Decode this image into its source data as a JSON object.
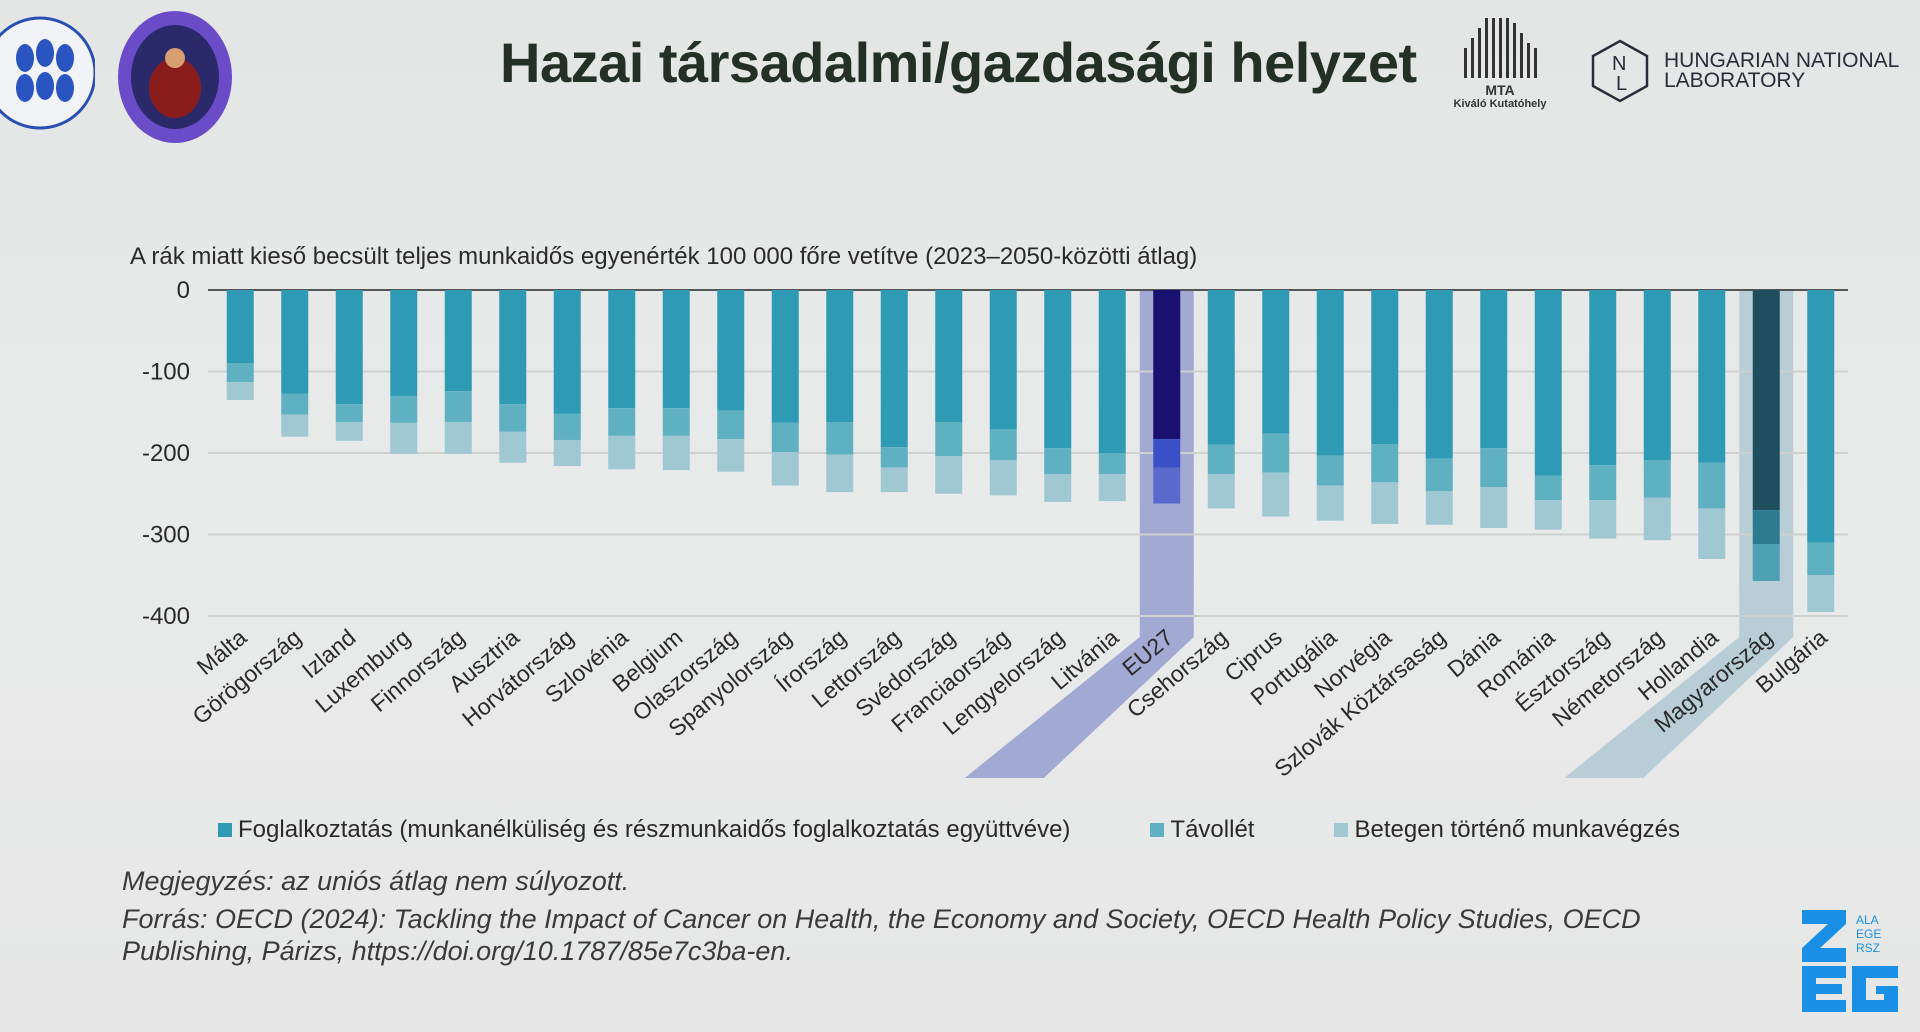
{
  "header": {
    "title": "Hazai társadalmi/gazdasági helyzet",
    "mta_logo": {
      "line1": "MTA",
      "line2": "Kiváló Kutatóhely"
    },
    "hnl_logo": {
      "mark": "NL",
      "line1": "HUNGARIAN NATIONAL",
      "line2": "LABORATORY"
    },
    "zeg_logo": {
      "letters": "ZEG",
      "small": [
        "ALA",
        "EGE",
        "RSZ"
      ]
    }
  },
  "chart_data": {
    "type": "bar",
    "stacked": true,
    "title": "A rák miatt kieső becsült teljes munkaidős egyenérték 100 000 főre vetítve (2023–2050-közötti átlag)",
    "xlabel": "",
    "ylabel": "",
    "ylim": [
      -400,
      0
    ],
    "yticks": [
      0,
      -100,
      -200,
      -300,
      -400
    ],
    "grid": true,
    "legend_position": "bottom",
    "categories": [
      "Málta",
      "Görögország",
      "Izland",
      "Luxemburg",
      "Finnország",
      "Ausztria",
      "Horvátország",
      "Szlovénia",
      "Belgium",
      "Olaszország",
      "Spanyolország",
      "Írország",
      "Lettország",
      "Svédország",
      "Franciaország",
      "Lengyelország",
      "Litvánia",
      "EU27",
      "Csehország",
      "Ciprus",
      "Portugália",
      "Norvégia",
      "Szlovák Köztársaság",
      "Dánia",
      "Románia",
      "Észtország",
      "Németország",
      "Hollandia",
      "Magyarország",
      "Bulgária"
    ],
    "highlighted": [
      "EU27",
      "Magyarország"
    ],
    "series": [
      {
        "name": "Foglalkoztatás (munkanélküliség és részmunkaidős foglalkoztatás együttvéve)",
        "color": "#2e9ab3",
        "values": [
          -90,
          -127,
          -140,
          -130,
          -124,
          -140,
          -152,
          -145,
          -145,
          -148,
          -163,
          -162,
          -193,
          -162,
          -171,
          -194,
          -200,
          -183,
          -190,
          -176,
          -203,
          -189,
          -207,
          -194,
          -228,
          -215,
          -209,
          -212,
          -270,
          -310
        ]
      },
      {
        "name": "Távollét",
        "color": "#5fb0c1",
        "values": [
          -23,
          -26,
          -22,
          -33,
          -38,
          -34,
          -32,
          -34,
          -34,
          -35,
          -36,
          -40,
          -25,
          -42,
          -38,
          -32,
          -26,
          -35,
          -36,
          -48,
          -37,
          -47,
          -40,
          -48,
          -30,
          -43,
          -46,
          -56,
          -42,
          -40
        ]
      },
      {
        "name": "Betegen történő munkavégzés",
        "color": "#9fc8d3",
        "values": [
          -22,
          -27,
          -23,
          -38,
          -39,
          -38,
          -32,
          -41,
          -42,
          -40,
          -41,
          -46,
          -30,
          -46,
          -43,
          -34,
          -33,
          -44,
          -42,
          -54,
          -43,
          -51,
          -41,
          -50,
          -36,
          -47,
          -52,
          -62,
          -45,
          -45
        ]
      }
    ],
    "highlight_colors": {
      "EU27": [
        "#1a1070",
        "#3a4fc8",
        "#5a6acc",
        "#9aa3d0"
      ],
      "Magyarország": [
        "#1f4f5e",
        "#2e7a90",
        "#4ea1b5",
        "#b3cad3"
      ]
    }
  },
  "notes": {
    "note": "Megjegyzés: az uniós átlag nem súlyozott.",
    "source_line1": "Forrás: OECD (2024): Tackling the Impact of Cancer on Health, the Economy and Society, OECD Health Policy Studies, OECD",
    "source_line2": "Publishing, Párizs, https://doi.org/10.1787/85e7c3ba-en."
  }
}
